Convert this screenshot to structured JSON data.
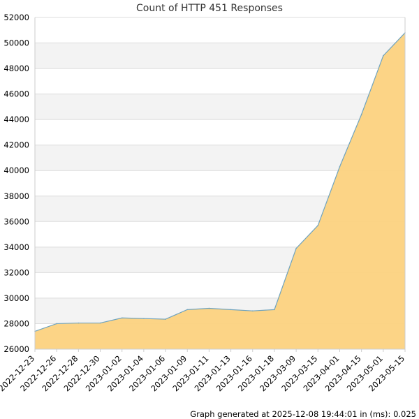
{
  "chart_data": {
    "type": "area",
    "title": "Count of HTTP 451 Responses",
    "xlabel": "",
    "ylabel": "",
    "x": [
      "2022-12-23",
      "2022-12-26",
      "2022-12-28",
      "2022-12-30",
      "2023-01-02",
      "2023-01-04",
      "2023-01-06",
      "2023-01-09",
      "2023-01-11",
      "2023-01-13",
      "2023-01-16",
      "2023-01-18",
      "2023-03-09",
      "2023-03-15",
      "2023-04-01",
      "2023-04-15",
      "2023-05-01",
      "2023-05-15"
    ],
    "series": [
      {
        "values": [
          27400,
          28000,
          28050,
          28050,
          28450,
          28400,
          28350,
          29100,
          29200,
          29100,
          29000,
          29100,
          33900,
          35700,
          40300,
          44400,
          49000,
          50800
        ]
      }
    ],
    "ylim": [
      26000,
      52000
    ],
    "yticks": [
      26000,
      28000,
      30000,
      32000,
      34000,
      36000,
      38000,
      40000,
      42000,
      44000,
      46000,
      48000,
      50000,
      52000
    ],
    "grid": true,
    "legend": "none",
    "colors": {
      "fill": "#fcd27f",
      "line": "#6fa3be",
      "band": "#f3f3f3",
      "grid": "#dcdcdc",
      "axis": "#cccccc"
    }
  },
  "footer": {
    "text": "Graph generated at 2025-12-08 19:44:01 in (ms): 0.025"
  }
}
